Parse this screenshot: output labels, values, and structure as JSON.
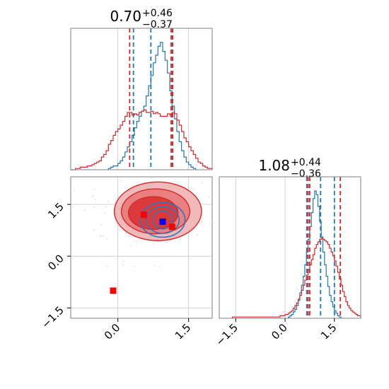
{
  "chart_data": [
    {
      "panel": "marginal-param-1",
      "type": "histogram",
      "title": {
        "median": "0.70",
        "plus": "+0.46",
        "minus": "−0.37"
      },
      "xlim": [
        -1.0,
        2.0
      ],
      "x_ticks": [
        -1.5,
        0.0,
        1.5
      ],
      "grid": true,
      "series": [
        {
          "color": "#1f77b4",
          "quantile_lines": [
            0.33,
            0.7,
            1.16
          ],
          "bins": {
            "start": -0.2,
            "width": 0.05,
            "heights": [
              0.01,
              0.02,
              0.03,
              0.03,
              0.05,
              0.07,
              0.1,
              0.14,
              0.18,
              0.22,
              0.27,
              0.33,
              0.38,
              0.42,
              0.46,
              0.5,
              0.58,
              0.66,
              0.74,
              0.84,
              0.9,
              0.97,
              1.0,
              0.93,
              0.86,
              0.76,
              0.62,
              0.5,
              0.4,
              0.3,
              0.22,
              0.15,
              0.1,
              0.06,
              0.04,
              0.02,
              0.01
            ]
          }
        },
        {
          "color": "#d62728",
          "quantile_lines": [
            0.25,
            1.13,
            1.16
          ],
          "bins": {
            "start": -1.0,
            "width": 0.05,
            "heights": [
              0.0,
              0.0,
              0.01,
              0.01,
              0.02,
              0.02,
              0.02,
              0.03,
              0.03,
              0.04,
              0.05,
              0.06,
              0.07,
              0.1,
              0.12,
              0.15,
              0.2,
              0.23,
              0.27,
              0.3,
              0.32,
              0.35,
              0.38,
              0.42,
              0.45,
              0.45,
              0.43,
              0.44,
              0.43,
              0.45,
              0.46,
              0.47,
              0.45,
              0.45,
              0.46,
              0.44,
              0.45,
              0.44,
              0.42,
              0.42,
              0.42,
              0.44,
              0.43,
              0.45,
              0.44,
              0.39,
              0.35,
              0.3,
              0.25,
              0.22,
              0.18,
              0.15,
              0.12,
              0.09,
              0.06,
              0.05,
              0.03,
              0.02,
              0.01,
              0.01
            ]
          }
        }
      ]
    },
    {
      "panel": "marginal-param-2",
      "type": "histogram",
      "title": {
        "median": "1.08",
        "plus": "+0.44",
        "minus": "−0.36"
      },
      "xlim": [
        -2.0,
        2.3
      ],
      "x_ticks": [
        -1.5,
        0.0,
        1.5
      ],
      "x_tick_labels": [
        "−1.5",
        "0.0",
        "1.5"
      ],
      "grid": true,
      "series": [
        {
          "color": "#1f77b4",
          "quantile_lines": [
            0.66,
            1.08,
            1.5
          ],
          "bins": {
            "start": 0.1,
            "width": 0.05,
            "heights": [
              0.01,
              0.02,
              0.03,
              0.05,
              0.07,
              0.1,
              0.14,
              0.2,
              0.26,
              0.33,
              0.42,
              0.52,
              0.62,
              0.72,
              0.83,
              0.94,
              1.0,
              0.97,
              0.88,
              0.76,
              0.64,
              0.52,
              0.42,
              0.33,
              0.25,
              0.18,
              0.13,
              0.09,
              0.06,
              0.04,
              0.02,
              0.01
            ]
          }
        },
        {
          "color": "#d62728",
          "quantile_lines": [
            0.7,
            0.75,
            1.68
          ],
          "bins": {
            "start": -1.6,
            "width": 0.05,
            "heights": [
              0.01,
              0.01,
              0.01,
              0.01,
              0.01,
              0.01,
              0.01,
              0.01,
              0.01,
              0.01,
              0.01,
              0.01,
              0.01,
              0.01,
              0.01,
              0.01,
              0.01,
              0.01,
              0.01,
              0.01,
              0.01,
              0.01,
              0.01,
              0.01,
              0.01,
              0.01,
              0.01,
              0.01,
              0.01,
              0.02,
              0.02,
              0.02,
              0.03,
              0.03,
              0.04,
              0.05,
              0.06,
              0.08,
              0.1,
              0.12,
              0.15,
              0.18,
              0.22,
              0.26,
              0.3,
              0.34,
              0.38,
              0.42,
              0.46,
              0.5,
              0.55,
              0.58,
              0.6,
              0.62,
              0.63,
              0.62,
              0.61,
              0.6,
              0.58,
              0.55,
              0.52,
              0.49,
              0.45,
              0.41,
              0.36,
              0.31,
              0.26,
              0.21,
              0.17,
              0.13,
              0.1,
              0.08,
              0.06,
              0.05,
              0.04,
              0.03,
              0.02,
              0.02,
              0.01,
              0.01,
              0.01,
              0.01,
              0.01
            ]
          }
        }
      ]
    },
    {
      "panel": "joint-2d",
      "type": "contour",
      "xlim": [
        -1.0,
        2.0
      ],
      "ylim": [
        -1.8,
        2.3
      ],
      "x_ticks": [
        0.0,
        1.5
      ],
      "y_ticks": [
        -1.5,
        0.0,
        1.5
      ],
      "y_tick_labels": [
        "−1.5",
        "0.0",
        "1.5"
      ],
      "grid": true,
      "red_contours": [
        {
          "cx": 0.85,
          "cy": 1.3,
          "rx": 1.85,
          "ry": 1.7
        },
        {
          "cx": 0.8,
          "cy": 1.3,
          "rx": 1.45,
          "ry": 1.3
        },
        {
          "cx": 0.75,
          "cy": 1.25,
          "rx": 1.05,
          "ry": 0.95
        }
      ],
      "blue_contours": [
        {
          "cx": 0.95,
          "cy": 1.05,
          "rx": 0.95,
          "ry": 1.0
        },
        {
          "cx": 0.95,
          "cy": 1.05,
          "rx": 0.7,
          "ry": 0.78
        },
        {
          "cx": 0.95,
          "cy": 1.05,
          "rx": 0.42,
          "ry": 0.52
        }
      ],
      "markers": [
        {
          "color": "#ff0000",
          "x": -0.1,
          "y": -1.0
        },
        {
          "color": "#ff0000",
          "x": 0.55,
          "y": 1.2
        },
        {
          "color": "#ff0000",
          "x": 1.15,
          "y": 0.85
        },
        {
          "color": "#0000ff",
          "x": 0.95,
          "y": 1.0
        }
      ]
    }
  ]
}
